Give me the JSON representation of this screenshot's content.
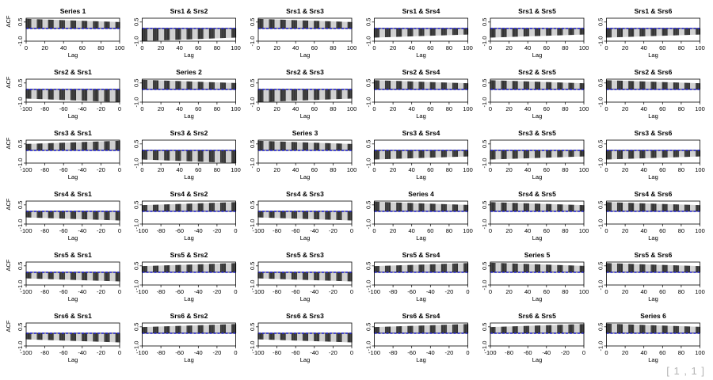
{
  "page_indicator": "[ 1 , 1 ]",
  "colors": {
    "ci_line": "#2222cc",
    "bar_dark": "#333333",
    "bar_light": "#cfcfcf",
    "axis": "#000000"
  },
  "chart_data": [
    {
      "type": "bar",
      "title": "Series 1",
      "xlabel": "Lag",
      "ylabel": "ACF",
      "xlim": [
        0,
        100
      ],
      "xticks": [
        0,
        20,
        40,
        60,
        80,
        100
      ],
      "ylim": [
        -1.0,
        0.8
      ],
      "yticks": [
        -1.0,
        0.5
      ],
      "acf_start": 0.75,
      "acf_end": 0.5,
      "ci": [
        0.02,
        -0.02
      ]
    },
    {
      "type": "bar",
      "title": "Srs1 & Srs2",
      "xlabel": "Lag",
      "ylabel": "",
      "xlim": [
        0,
        100
      ],
      "xticks": [
        0,
        20,
        40,
        60,
        80,
        100
      ],
      "ylim": [
        -1.0,
        0.8
      ],
      "yticks": [
        -1.0,
        0.5
      ],
      "acf_start": -1.0,
      "acf_end": -0.72,
      "ci": [
        0.02,
        -0.02
      ]
    },
    {
      "type": "bar",
      "title": "Srs1 & Srs3",
      "xlabel": "Lag",
      "ylabel": "",
      "xlim": [
        0,
        100
      ],
      "xticks": [
        0,
        20,
        40,
        60,
        80,
        100
      ],
      "ylim": [
        -1.0,
        0.8
      ],
      "yticks": [
        -1.0,
        0.5
      ],
      "acf_start": 0.75,
      "acf_end": 0.5,
      "ci": [
        0.02,
        -0.02
      ]
    },
    {
      "type": "bar",
      "title": "Srs1 & Srs4",
      "xlabel": "Lag",
      "ylabel": "",
      "xlim": [
        0,
        100
      ],
      "xticks": [
        0,
        20,
        40,
        60,
        80,
        100
      ],
      "ylim": [
        -1.0,
        0.8
      ],
      "yticks": [
        -1.0,
        0.5
      ],
      "acf_start": -0.72,
      "acf_end": -0.48,
      "ci": [
        0.02,
        -0.02
      ]
    },
    {
      "type": "bar",
      "title": "Srs1 & Srs5",
      "xlabel": "Lag",
      "ylabel": "",
      "xlim": [
        0,
        100
      ],
      "xticks": [
        0,
        20,
        40,
        60,
        80,
        100
      ],
      "ylim": [
        -1.0,
        0.8
      ],
      "yticks": [
        -1.0,
        0.5
      ],
      "acf_start": -0.72,
      "acf_end": -0.48,
      "ci": [
        0.02,
        -0.02
      ]
    },
    {
      "type": "bar",
      "title": "Srs1 & Srs6",
      "xlabel": "Lag",
      "ylabel": "",
      "xlim": [
        0,
        100
      ],
      "xticks": [
        0,
        20,
        40,
        60,
        80,
        100
      ],
      "ylim": [
        -1.0,
        0.8
      ],
      "yticks": [
        -1.0,
        0.5
      ],
      "acf_start": -0.72,
      "acf_end": -0.48,
      "ci": [
        0.02,
        -0.02
      ]
    },
    {
      "type": "bar",
      "title": "Srs2 & Srs1",
      "xlabel": "Lag",
      "ylabel": "ACF",
      "xlim": [
        -100,
        0
      ],
      "xticks": [
        -100,
        -80,
        -60,
        -40,
        -20,
        0
      ],
      "ylim": [
        -1.0,
        0.8
      ],
      "yticks": [
        -1.0,
        0.5
      ],
      "acf_start": -0.72,
      "acf_end": -1.0,
      "ci": [
        0.02,
        -0.02
      ]
    },
    {
      "type": "bar",
      "title": "Series 2",
      "xlabel": "Lag",
      "ylabel": "",
      "xlim": [
        0,
        100
      ],
      "xticks": [
        0,
        20,
        40,
        60,
        80,
        100
      ],
      "ylim": [
        -1.0,
        0.8
      ],
      "yticks": [
        -1.0,
        0.5
      ],
      "acf_start": 0.75,
      "acf_end": 0.5,
      "ci": [
        0.02,
        -0.02
      ]
    },
    {
      "type": "bar",
      "title": "Srs2 & Srs3",
      "xlabel": "Lag",
      "ylabel": "",
      "xlim": [
        0,
        100
      ],
      "xticks": [
        0,
        20,
        40,
        60,
        80,
        100
      ],
      "ylim": [
        -1.0,
        0.8
      ],
      "yticks": [
        -1.0,
        0.5
      ],
      "acf_start": -1.0,
      "acf_end": -0.72,
      "ci": [
        0.02,
        -0.02
      ]
    },
    {
      "type": "bar",
      "title": "Srs2 & Srs4",
      "xlabel": "Lag",
      "ylabel": "",
      "xlim": [
        0,
        100
      ],
      "xticks": [
        0,
        20,
        40,
        60,
        80,
        100
      ],
      "ylim": [
        -1.0,
        0.8
      ],
      "yticks": [
        -1.0,
        0.5
      ],
      "acf_start": 0.72,
      "acf_end": 0.48,
      "ci": [
        0.02,
        -0.02
      ]
    },
    {
      "type": "bar",
      "title": "Srs2 & Srs5",
      "xlabel": "Lag",
      "ylabel": "",
      "xlim": [
        0,
        100
      ],
      "xticks": [
        0,
        20,
        40,
        60,
        80,
        100
      ],
      "ylim": [
        -1.0,
        0.8
      ],
      "yticks": [
        -1.0,
        0.5
      ],
      "acf_start": 0.72,
      "acf_end": 0.48,
      "ci": [
        0.02,
        -0.02
      ]
    },
    {
      "type": "bar",
      "title": "Srs2 & Srs6",
      "xlabel": "Lag",
      "ylabel": "",
      "xlim": [
        0,
        100
      ],
      "xticks": [
        0,
        20,
        40,
        60,
        80,
        100
      ],
      "ylim": [
        -1.0,
        0.8
      ],
      "yticks": [
        -1.0,
        0.5
      ],
      "acf_start": 0.72,
      "acf_end": 0.48,
      "ci": [
        0.02,
        -0.02
      ]
    },
    {
      "type": "bar",
      "title": "Srs3 & Srs1",
      "xlabel": "Lag",
      "ylabel": "ACF",
      "xlim": [
        -100,
        0
      ],
      "xticks": [
        -100,
        -80,
        -60,
        -40,
        -20,
        0
      ],
      "ylim": [
        -1.0,
        0.8
      ],
      "yticks": [
        -1.0,
        0.5
      ],
      "acf_start": 0.5,
      "acf_end": 0.75,
      "ci": [
        0.02,
        -0.02
      ]
    },
    {
      "type": "bar",
      "title": "Srs3 & Srs2",
      "xlabel": "Lag",
      "ylabel": "",
      "xlim": [
        0,
        100
      ],
      "xticks": [
        0,
        20,
        40,
        60,
        80,
        100
      ],
      "ylim": [
        -1.0,
        0.8
      ],
      "yticks": [
        -1.0,
        0.5
      ],
      "acf_start": -0.72,
      "acf_end": -1.0,
      "ci": [
        0.02,
        -0.02
      ]
    },
    {
      "type": "bar",
      "title": "Series 3",
      "xlabel": "Lag",
      "ylabel": "",
      "xlim": [
        0,
        100
      ],
      "xticks": [
        0,
        20,
        40,
        60,
        80,
        100
      ],
      "ylim": [
        -1.0,
        0.8
      ],
      "yticks": [
        -1.0,
        0.5
      ],
      "acf_start": 0.75,
      "acf_end": 0.5,
      "ci": [
        0.02,
        -0.02
      ]
    },
    {
      "type": "bar",
      "title": "Srs3 & Srs4",
      "xlabel": "Lag",
      "ylabel": "",
      "xlim": [
        0,
        100
      ],
      "xticks": [
        0,
        20,
        40,
        60,
        80,
        100
      ],
      "ylim": [
        -1.0,
        0.8
      ],
      "yticks": [
        -1.0,
        0.5
      ],
      "acf_start": -0.72,
      "acf_end": -0.48,
      "ci": [
        0.02,
        -0.02
      ]
    },
    {
      "type": "bar",
      "title": "Srs3 & Srs5",
      "xlabel": "Lag",
      "ylabel": "",
      "xlim": [
        0,
        100
      ],
      "xticks": [
        0,
        20,
        40,
        60,
        80,
        100
      ],
      "ylim": [
        -1.0,
        0.8
      ],
      "yticks": [
        -1.0,
        0.5
      ],
      "acf_start": -0.72,
      "acf_end": -0.48,
      "ci": [
        0.02,
        -0.02
      ]
    },
    {
      "type": "bar",
      "title": "Srs3 & Srs6",
      "xlabel": "Lag",
      "ylabel": "",
      "xlim": [
        0,
        100
      ],
      "xticks": [
        0,
        20,
        40,
        60,
        80,
        100
      ],
      "ylim": [
        -1.0,
        0.8
      ],
      "yticks": [
        -1.0,
        0.5
      ],
      "acf_start": -0.72,
      "acf_end": -0.48,
      "ci": [
        0.02,
        -0.02
      ]
    },
    {
      "type": "bar",
      "title": "Srs4 & Srs1",
      "xlabel": "Lag",
      "ylabel": "ACF",
      "xlim": [
        -100,
        0
      ],
      "xticks": [
        -100,
        -80,
        -60,
        -40,
        -20,
        0
      ],
      "ylim": [
        -1.0,
        0.8
      ],
      "yticks": [
        -1.0,
        0.5
      ],
      "acf_start": -0.48,
      "acf_end": -0.72,
      "ci": [
        0.02,
        -0.02
      ]
    },
    {
      "type": "bar",
      "title": "Srs4 & Srs2",
      "xlabel": "Lag",
      "ylabel": "",
      "xlim": [
        -100,
        0
      ],
      "xticks": [
        -100,
        -80,
        -60,
        -40,
        -20,
        0
      ],
      "ylim": [
        -1.0,
        0.8
      ],
      "yticks": [
        -1.0,
        0.5
      ],
      "acf_start": 0.48,
      "acf_end": 0.72,
      "ci": [
        0.02,
        -0.02
      ]
    },
    {
      "type": "bar",
      "title": "Srs4 & Srs3",
      "xlabel": "Lag",
      "ylabel": "",
      "xlim": [
        -100,
        0
      ],
      "xticks": [
        -100,
        -80,
        -60,
        -40,
        -20,
        0
      ],
      "ylim": [
        -1.0,
        0.8
      ],
      "yticks": [
        -1.0,
        0.5
      ],
      "acf_start": -0.48,
      "acf_end": -0.72,
      "ci": [
        0.02,
        -0.02
      ]
    },
    {
      "type": "bar",
      "title": "Series 4",
      "xlabel": "Lag",
      "ylabel": "",
      "xlim": [
        0,
        100
      ],
      "xticks": [
        0,
        20,
        40,
        60,
        80,
        100
      ],
      "ylim": [
        -1.0,
        0.8
      ],
      "yticks": [
        -1.0,
        0.5
      ],
      "acf_start": 0.75,
      "acf_end": 0.5,
      "ci": [
        0.02,
        -0.02
      ]
    },
    {
      "type": "bar",
      "title": "Srs4 & Srs5",
      "xlabel": "Lag",
      "ylabel": "",
      "xlim": [
        0,
        100
      ],
      "xticks": [
        0,
        20,
        40,
        60,
        80,
        100
      ],
      "ylim": [
        -1.0,
        0.8
      ],
      "yticks": [
        -1.0,
        0.5
      ],
      "acf_start": 0.72,
      "acf_end": 0.48,
      "ci": [
        0.02,
        -0.02
      ]
    },
    {
      "type": "bar",
      "title": "Srs4 & Srs6",
      "xlabel": "Lag",
      "ylabel": "",
      "xlim": [
        0,
        100
      ],
      "xticks": [
        0,
        20,
        40,
        60,
        80,
        100
      ],
      "ylim": [
        -1.0,
        0.8
      ],
      "yticks": [
        -1.0,
        0.5
      ],
      "acf_start": 0.72,
      "acf_end": 0.48,
      "ci": [
        0.02,
        -0.02
      ]
    },
    {
      "type": "bar",
      "title": "Srs5 & Srs1",
      "xlabel": "Lag",
      "ylabel": "ACF",
      "xlim": [
        -100,
        0
      ],
      "xticks": [
        -100,
        -80,
        -60,
        -40,
        -20,
        0
      ],
      "ylim": [
        -1.0,
        0.8
      ],
      "yticks": [
        -1.0,
        0.5
      ],
      "acf_start": -0.48,
      "acf_end": -0.72,
      "ci": [
        0.02,
        -0.02
      ]
    },
    {
      "type": "bar",
      "title": "Srs5 & Srs2",
      "xlabel": "Lag",
      "ylabel": "",
      "xlim": [
        -100,
        0
      ],
      "xticks": [
        -100,
        -80,
        -60,
        -40,
        -20,
        0
      ],
      "ylim": [
        -1.0,
        0.8
      ],
      "yticks": [
        -1.0,
        0.5
      ],
      "acf_start": 0.48,
      "acf_end": 0.72,
      "ci": [
        0.02,
        -0.02
      ]
    },
    {
      "type": "bar",
      "title": "Srs5 & Srs3",
      "xlabel": "Lag",
      "ylabel": "",
      "xlim": [
        -100,
        0
      ],
      "xticks": [
        -100,
        -80,
        -60,
        -40,
        -20,
        0
      ],
      "ylim": [
        -1.0,
        0.8
      ],
      "yticks": [
        -1.0,
        0.5
      ],
      "acf_start": -0.48,
      "acf_end": -0.72,
      "ci": [
        0.02,
        -0.02
      ]
    },
    {
      "type": "bar",
      "title": "Srs5 & Srs4",
      "xlabel": "Lag",
      "ylabel": "",
      "xlim": [
        -100,
        0
      ],
      "xticks": [
        -100,
        -80,
        -60,
        -40,
        -20,
        0
      ],
      "ylim": [
        -1.0,
        0.8
      ],
      "yticks": [
        -1.0,
        0.5
      ],
      "acf_start": 0.48,
      "acf_end": 0.72,
      "ci": [
        0.02,
        -0.02
      ]
    },
    {
      "type": "bar",
      "title": "Series 5",
      "xlabel": "Lag",
      "ylabel": "",
      "xlim": [
        0,
        100
      ],
      "xticks": [
        0,
        20,
        40,
        60,
        80,
        100
      ],
      "ylim": [
        -1.0,
        0.8
      ],
      "yticks": [
        -1.0,
        0.5
      ],
      "acf_start": 0.75,
      "acf_end": 0.5,
      "ci": [
        0.02,
        -0.02
      ]
    },
    {
      "type": "bar",
      "title": "Srs5 & Srs6",
      "xlabel": "Lag",
      "ylabel": "",
      "xlim": [
        0,
        100
      ],
      "xticks": [
        0,
        20,
        40,
        60,
        80,
        100
      ],
      "ylim": [
        -1.0,
        0.8
      ],
      "yticks": [
        -1.0,
        0.5
      ],
      "acf_start": 0.72,
      "acf_end": 0.48,
      "ci": [
        0.02,
        -0.02
      ]
    },
    {
      "type": "bar",
      "title": "Srs6 & Srs1",
      "xlabel": "Lag",
      "ylabel": "ACF",
      "xlim": [
        -100,
        0
      ],
      "xticks": [
        -100,
        -80,
        -60,
        -40,
        -20,
        0
      ],
      "ylim": [
        -1.0,
        0.8
      ],
      "yticks": [
        -1.0,
        0.5
      ],
      "acf_start": -0.48,
      "acf_end": -0.72,
      "ci": [
        0.02,
        -0.02
      ]
    },
    {
      "type": "bar",
      "title": "Srs6 & Srs2",
      "xlabel": "Lag",
      "ylabel": "",
      "xlim": [
        -100,
        0
      ],
      "xticks": [
        -100,
        -80,
        -60,
        -40,
        -20,
        0
      ],
      "ylim": [
        -1.0,
        0.8
      ],
      "yticks": [
        -1.0,
        0.5
      ],
      "acf_start": 0.48,
      "acf_end": 0.72,
      "ci": [
        0.02,
        -0.02
      ]
    },
    {
      "type": "bar",
      "title": "Srs6 & Srs3",
      "xlabel": "Lag",
      "ylabel": "",
      "xlim": [
        -100,
        0
      ],
      "xticks": [
        -100,
        -80,
        -60,
        -40,
        -20,
        0
      ],
      "ylim": [
        -1.0,
        0.8
      ],
      "yticks": [
        -1.0,
        0.5
      ],
      "acf_start": -0.48,
      "acf_end": -0.72,
      "ci": [
        0.02,
        -0.02
      ]
    },
    {
      "type": "bar",
      "title": "Srs6 & Srs4",
      "xlabel": "Lag",
      "ylabel": "",
      "xlim": [
        -100,
        0
      ],
      "xticks": [
        -100,
        -80,
        -60,
        -40,
        -20,
        0
      ],
      "ylim": [
        -1.0,
        0.8
      ],
      "yticks": [
        -1.0,
        0.5
      ],
      "acf_start": 0.48,
      "acf_end": 0.72,
      "ci": [
        0.02,
        -0.02
      ]
    },
    {
      "type": "bar",
      "title": "Srs6 & Srs5",
      "xlabel": "Lag",
      "ylabel": "",
      "xlim": [
        -100,
        0
      ],
      "xticks": [
        -100,
        -80,
        -60,
        -40,
        -20,
        0
      ],
      "ylim": [
        -1.0,
        0.8
      ],
      "yticks": [
        -1.0,
        0.5
      ],
      "acf_start": 0.48,
      "acf_end": 0.72,
      "ci": [
        0.02,
        -0.02
      ]
    },
    {
      "type": "bar",
      "title": "Series 6",
      "xlabel": "Lag",
      "ylabel": "",
      "xlim": [
        0,
        100
      ],
      "xticks": [
        0,
        20,
        40,
        60,
        80,
        100
      ],
      "ylim": [
        -1.0,
        0.8
      ],
      "yticks": [
        -1.0,
        0.5
      ],
      "acf_start": 0.75,
      "acf_end": 0.5,
      "ci": [
        0.02,
        -0.02
      ]
    }
  ]
}
